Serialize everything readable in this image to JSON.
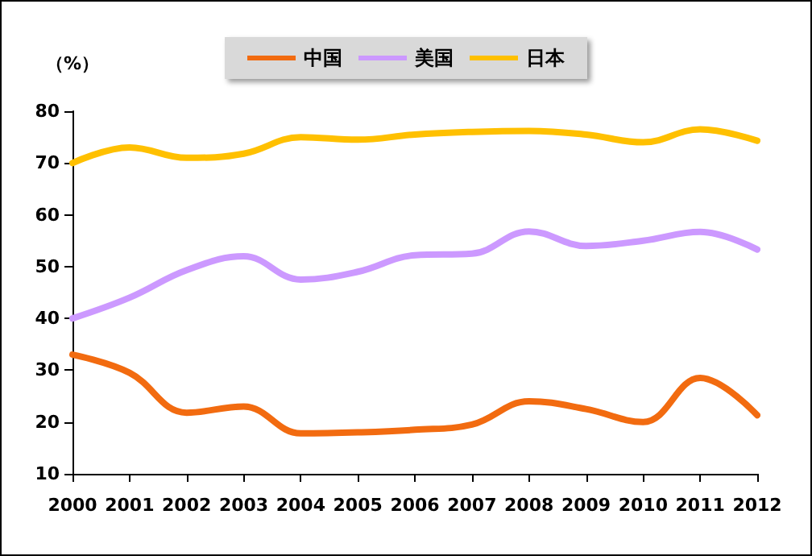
{
  "chart_data": {
    "type": "line",
    "ylabel": "（%）",
    "categories": [
      "2000",
      "2001",
      "2002",
      "2003",
      "2004",
      "2005",
      "2006",
      "2007",
      "2008",
      "2009",
      "2010",
      "2011",
      "2012"
    ],
    "series": [
      {
        "name": "中国",
        "color": "#f26b10",
        "values": [
          33,
          29.5,
          21.8,
          23,
          17.8,
          18,
          18.5,
          19.5,
          24,
          22.5,
          20,
          28.5,
          21.3
        ]
      },
      {
        "name": "美国",
        "color": "#cc99ff",
        "values": [
          40,
          44,
          49.3,
          52,
          47.5,
          49,
          52.2,
          52.5,
          56.8,
          54,
          55,
          56.7,
          53.3
        ]
      },
      {
        "name": "日本",
        "color": "#ffc000",
        "values": [
          70,
          73,
          71,
          71.8,
          75,
          74.5,
          75.5,
          76,
          76.2,
          75.5,
          74,
          76.5,
          74.3
        ]
      }
    ],
    "ylim": [
      10,
      80
    ],
    "yticks": [
      10,
      20,
      30,
      40,
      50,
      60,
      70,
      80
    ],
    "grid": false,
    "legend": "top",
    "marker": "none",
    "line_style": "solid"
  }
}
